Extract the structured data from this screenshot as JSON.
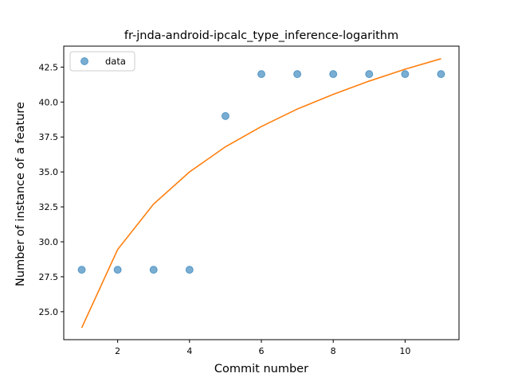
{
  "chart_data": {
    "type": "scatter",
    "title": "fr-jnda-android-ipcalc_type_inference-logarithm",
    "xlabel": "Commit number",
    "ylabel": "Number of instance of a feature",
    "xlim": [
      0.5,
      11.5
    ],
    "ylim": [
      23.0,
      44.0
    ],
    "xticks": [
      2,
      4,
      6,
      8,
      10
    ],
    "xtick_labels": [
      "2",
      "4",
      "6",
      "8",
      "10"
    ],
    "yticks": [
      25.0,
      27.5,
      30.0,
      32.5,
      35.0,
      37.5,
      40.0,
      42.5
    ],
    "ytick_labels": [
      "25.0",
      "27.5",
      "30.0",
      "32.5",
      "35.0",
      "37.5",
      "40.0",
      "42.5"
    ],
    "grid": false,
    "legend_position": "upper-left",
    "series": [
      {
        "name": "data",
        "kind": "scatter",
        "color": "#1f77b4",
        "x": [
          1,
          2,
          3,
          4,
          5,
          6,
          7,
          8,
          9,
          10,
          11
        ],
        "y": [
          28,
          28,
          28,
          28,
          39,
          42,
          42,
          42,
          42,
          42,
          42
        ]
      },
      {
        "kind": "line",
        "color": "#ff7f0e",
        "x": [
          1,
          2,
          3,
          4,
          5,
          6,
          7,
          8,
          9,
          10,
          11
        ],
        "y": [
          23.85,
          29.45,
          32.7,
          35.0,
          36.8,
          38.25,
          39.5,
          40.55,
          41.5,
          42.35,
          43.1
        ]
      }
    ]
  }
}
